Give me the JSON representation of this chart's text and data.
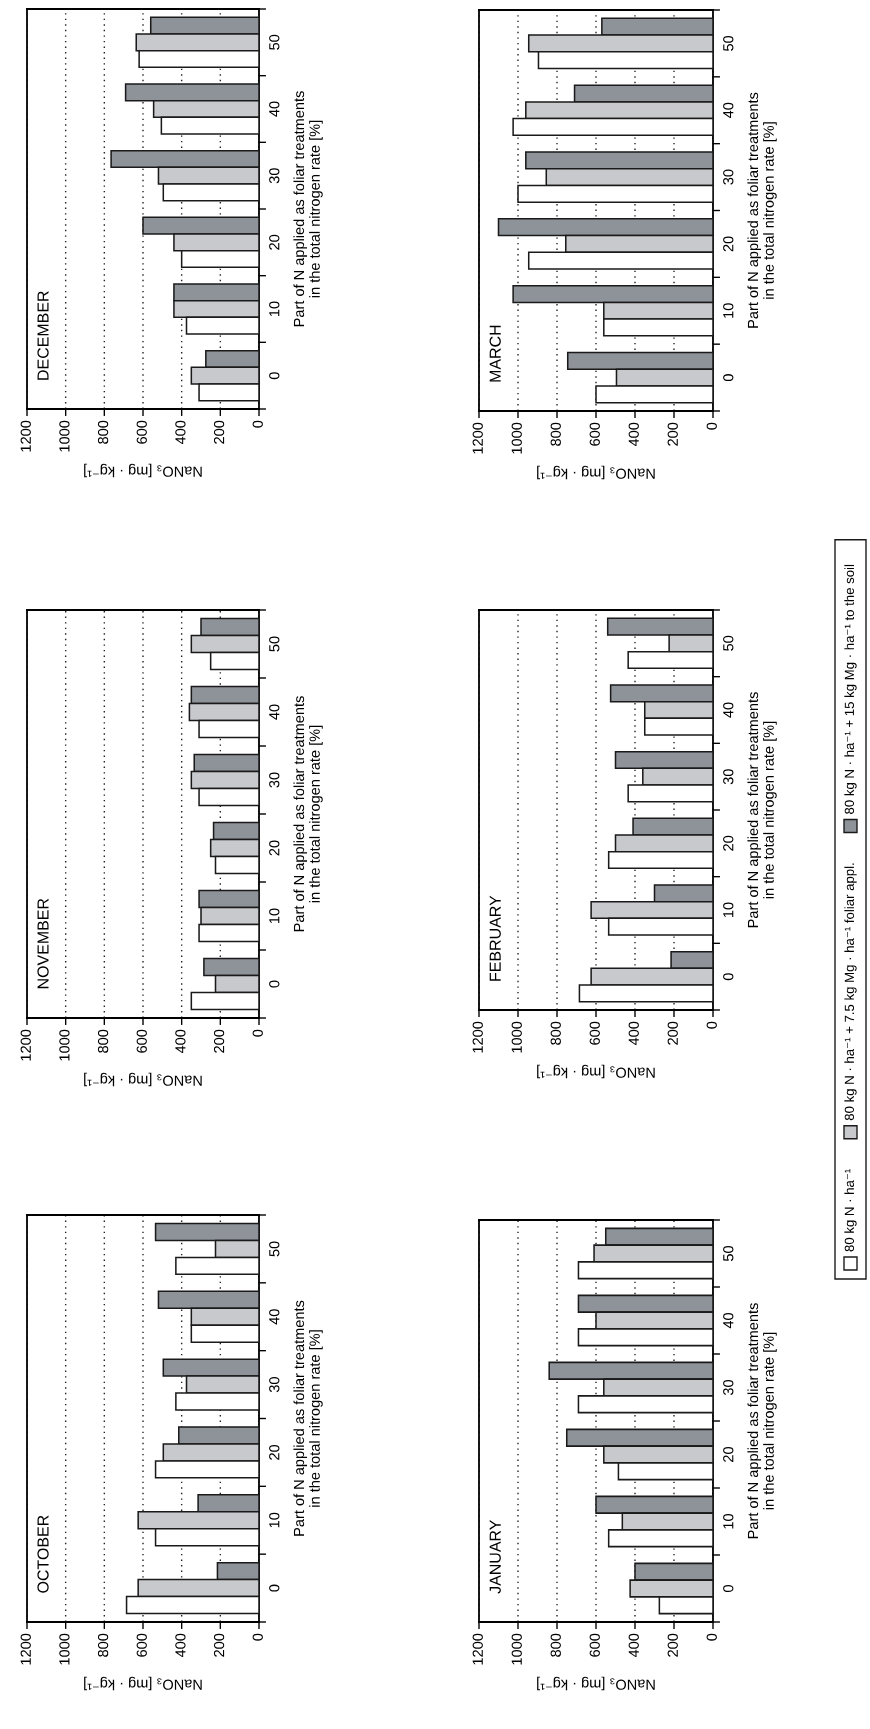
{
  "chart_data": [
    {
      "type": "bar",
      "orientation": "horizontal",
      "title": "OCTOBER",
      "xlabel": "NaNO₃ [mg · kg⁻¹]",
      "ylabel": "Part of N applied as foliar treatments\nin the total nitrogen rate [%]",
      "categories": [
        "50",
        "40",
        "30",
        "20",
        "10",
        "0"
      ],
      "xlim": [
        1200,
        0
      ],
      "xticks": [
        0,
        200,
        400,
        600,
        800,
        1000,
        1200
      ],
      "grid": "x",
      "legend": "right",
      "series": [
        {
          "name": "80 kg N · ha⁻¹ + 15 kg Mg · ha⁻¹ to the soil",
          "color": "#8e9299",
          "values": [
            535,
            520,
            495,
            415,
            315,
            215
          ]
        },
        {
          "name": "80 kg N · ha⁻¹ + 7.5 kg Mg · ha⁻¹ foliar appl.",
          "color": "#c8c9cc",
          "values": [
            225,
            350,
            375,
            495,
            625,
            625
          ]
        },
        {
          "name": "80 kg N · ha⁻¹",
          "color": "#ffffff",
          "values": [
            430,
            350,
            430,
            535,
            535,
            685
          ]
        }
      ]
    },
    {
      "type": "bar",
      "orientation": "horizontal",
      "title": "NOVEMBER",
      "xlabel": "NaNO₃ [mg · kg⁻¹]",
      "ylabel": "Part of N applied as foliar treatments\nin the total nitrogen rate [%]",
      "categories": [
        "50",
        "40",
        "30",
        "20",
        "10",
        "0"
      ],
      "xlim": [
        1200,
        0
      ],
      "xticks": [
        0,
        200,
        400,
        600,
        800,
        1000,
        1200
      ],
      "grid": "x",
      "series": [
        {
          "color": "#8e9299",
          "values": [
            300,
            350,
            335,
            235,
            310,
            285
          ]
        },
        {
          "color": "#c8c9cc",
          "values": [
            350,
            360,
            350,
            250,
            300,
            225
          ]
        },
        {
          "color": "#ffffff",
          "values": [
            250,
            310,
            310,
            225,
            310,
            350
          ]
        }
      ]
    },
    {
      "type": "bar",
      "orientation": "horizontal",
      "title": "DECEMBER",
      "xlabel": "NaNO₃ [mg · kg⁻¹]",
      "ylabel": "Part of N applied as foliar treatments\nin the total nitrogen rate [%]",
      "categories": [
        "50",
        "40",
        "30",
        "20",
        "10",
        "0"
      ],
      "xlim": [
        1200,
        0
      ],
      "xticks": [
        0,
        200,
        400,
        600,
        800,
        1000,
        1200
      ],
      "grid": "x",
      "series": [
        {
          "color": "#8e9299",
          "values": [
            560,
            690,
            765,
            600,
            440,
            275
          ]
        },
        {
          "color": "#c8c9cc",
          "values": [
            635,
            545,
            520,
            440,
            440,
            350
          ]
        },
        {
          "color": "#ffffff",
          "values": [
            620,
            505,
            495,
            400,
            375,
            310
          ]
        }
      ]
    },
    {
      "type": "bar",
      "orientation": "horizontal",
      "title": "JANUARY",
      "xlabel": "NaNO₃ [mg · kg⁻¹]",
      "ylabel": "Part of N applied as foliar treatments\nin the total nitrogen rate [%]",
      "categories": [
        "50",
        "40",
        "30",
        "20",
        "10",
        "0"
      ],
      "xlim": [
        1200,
        0
      ],
      "xticks": [
        0,
        200,
        400,
        600,
        800,
        1000,
        1200
      ],
      "grid": "x",
      "series": [
        {
          "color": "#8e9299",
          "values": [
            550,
            690,
            840,
            750,
            600,
            400
          ]
        },
        {
          "color": "#c8c9cc",
          "values": [
            610,
            600,
            560,
            560,
            465,
            425
          ]
        },
        {
          "color": "#ffffff",
          "values": [
            690,
            690,
            690,
            485,
            535,
            275
          ]
        }
      ]
    },
    {
      "type": "bar",
      "orientation": "horizontal",
      "title": "FEBRUARY",
      "xlabel": "NaNO₃ [mg · kg⁻¹]",
      "ylabel": "Part of N applied as foliar treatments\nin the total nitrogen rate [%]",
      "categories": [
        "50",
        "40",
        "30",
        "20",
        "10",
        "0"
      ],
      "xlim": [
        1200,
        0
      ],
      "xticks": [
        0,
        200,
        400,
        600,
        800,
        1000,
        1200
      ],
      "grid": "x",
      "series": [
        {
          "color": "#8e9299",
          "values": [
            540,
            525,
            500,
            410,
            300,
            215
          ]
        },
        {
          "color": "#c8c9cc",
          "values": [
            225,
            350,
            360,
            500,
            625,
            625
          ]
        },
        {
          "color": "#ffffff",
          "values": [
            435,
            350,
            435,
            535,
            535,
            685
          ]
        }
      ]
    },
    {
      "type": "bar",
      "orientation": "horizontal",
      "title": "MARCH",
      "xlabel": "NaNO₃ [mg · kg⁻¹]",
      "ylabel": "Part of N applied as foliar treatments\nin the total nitrogen rate [%]",
      "categories": [
        "50",
        "40",
        "30",
        "20",
        "10",
        "0"
      ],
      "xlim": [
        1200,
        0
      ],
      "xticks": [
        0,
        200,
        400,
        600,
        800,
        1000,
        1200
      ],
      "grid": "x",
      "series": [
        {
          "color": "#8e9299",
          "values": [
            570,
            710,
            960,
            1100,
            1025,
            745
          ]
        },
        {
          "color": "#c8c9cc",
          "values": [
            945,
            960,
            855,
            755,
            560,
            495
          ]
        },
        {
          "color": "#ffffff",
          "values": [
            895,
            1025,
            1000,
            945,
            560,
            600
          ]
        }
      ]
    }
  ]
}
